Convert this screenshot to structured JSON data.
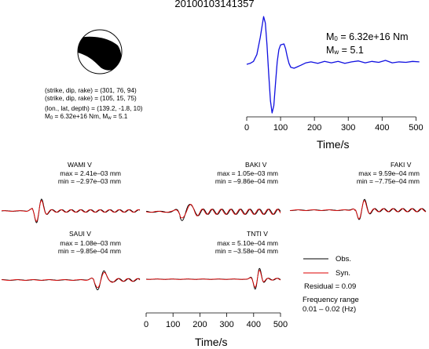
{
  "title": "20100103141357",
  "source_info": {
    "line1": "(strike, dip, rake) = (301, 76, 94)",
    "line2": "(strike, dip, rake) = (105, 15, 75)",
    "line3": "(lon., lat, depth) = (139.2, -1.8, 10)",
    "line4_m": "M",
    "line4_sub": "0",
    "line4_mid": " = 6.32e+16 Nm, M",
    "line4_sub2": "w",
    "line4_end": " = 5.1"
  },
  "stf_annotation": {
    "m_label": "M",
    "m_sub": "0",
    "m_value": " = 6.32e+16 Nm",
    "w_label": "M",
    "w_sub": "w",
    "w_value": " = 5.1"
  },
  "colors": {
    "observed": "#000000",
    "synthetic": "#dd0000",
    "stf": "#1010e0"
  },
  "chart_data": [
    {
      "type": "line",
      "id": "source-time-function",
      "xlabel": "Time/s",
      "ylabel": "",
      "xlim": [
        0,
        520
      ],
      "xticks": [
        0,
        100,
        200,
        300,
        400,
        500
      ],
      "xtick_labels": [
        "0",
        "100",
        "200",
        "300",
        "400",
        "500"
      ],
      "series": [
        {
          "x": [
            0,
            10,
            20,
            30,
            40,
            50,
            55,
            60,
            65,
            70,
            75,
            80,
            85,
            90,
            95,
            100,
            110,
            115,
            120,
            125,
            130,
            140,
            150,
            160,
            175,
            190,
            210,
            230,
            250,
            270,
            290,
            310,
            330,
            350,
            370,
            390,
            410,
            430,
            450,
            470,
            490,
            510
          ],
          "y": [
            0.0,
            0.02,
            0.06,
            0.2,
            0.55,
            0.98,
            0.85,
            0.4,
            -0.2,
            -0.75,
            -1.0,
            -0.85,
            -0.4,
            0.05,
            0.3,
            0.4,
            0.42,
            0.32,
            0.15,
            0.02,
            -0.06,
            -0.08,
            -0.05,
            -0.02,
            0.03,
            0.05,
            0.02,
            0.06,
            0.03,
            0.06,
            0.02,
            0.05,
            0.07,
            0.03,
            0.06,
            0.04,
            0.08,
            0.03,
            0.05,
            0.04,
            0.06,
            0.05
          ]
        }
      ]
    },
    {
      "type": "line",
      "id": "waveform-comparison",
      "xlabel": "Time/s",
      "xticks": [
        0,
        100,
        200,
        300,
        400,
        500
      ],
      "xtick_labels": [
        "0",
        "100",
        "200",
        "300",
        "400",
        "500"
      ],
      "legend": [
        "Obs.",
        "Syn."
      ],
      "residual": "Residual = 0.09",
      "frequency_range_label": "Frequency range",
      "frequency_range_value": "0.01 – 0.02 (Hz)",
      "stations": [
        {
          "name": "WAMI V",
          "max": "max = 2.41e–03 mm",
          "min": "min = –2.97e–03 mm"
        },
        {
          "name": "BAKI V",
          "max": "max = 1.05e–03 mm",
          "min": "min = –9.86e–04 mm"
        },
        {
          "name": "FAKI V",
          "max": "max = 9.59e–04 mm",
          "min": "min = –7.75e–04 mm"
        },
        {
          "name": "SAUI V",
          "max": "max = 1.08e–03 mm",
          "min": "min = –9.85e–04 mm"
        },
        {
          "name": "TNTI V",
          "max": "max = 5.10e–04 mm",
          "min": "min = –3.58e–04 mm"
        }
      ]
    }
  ]
}
